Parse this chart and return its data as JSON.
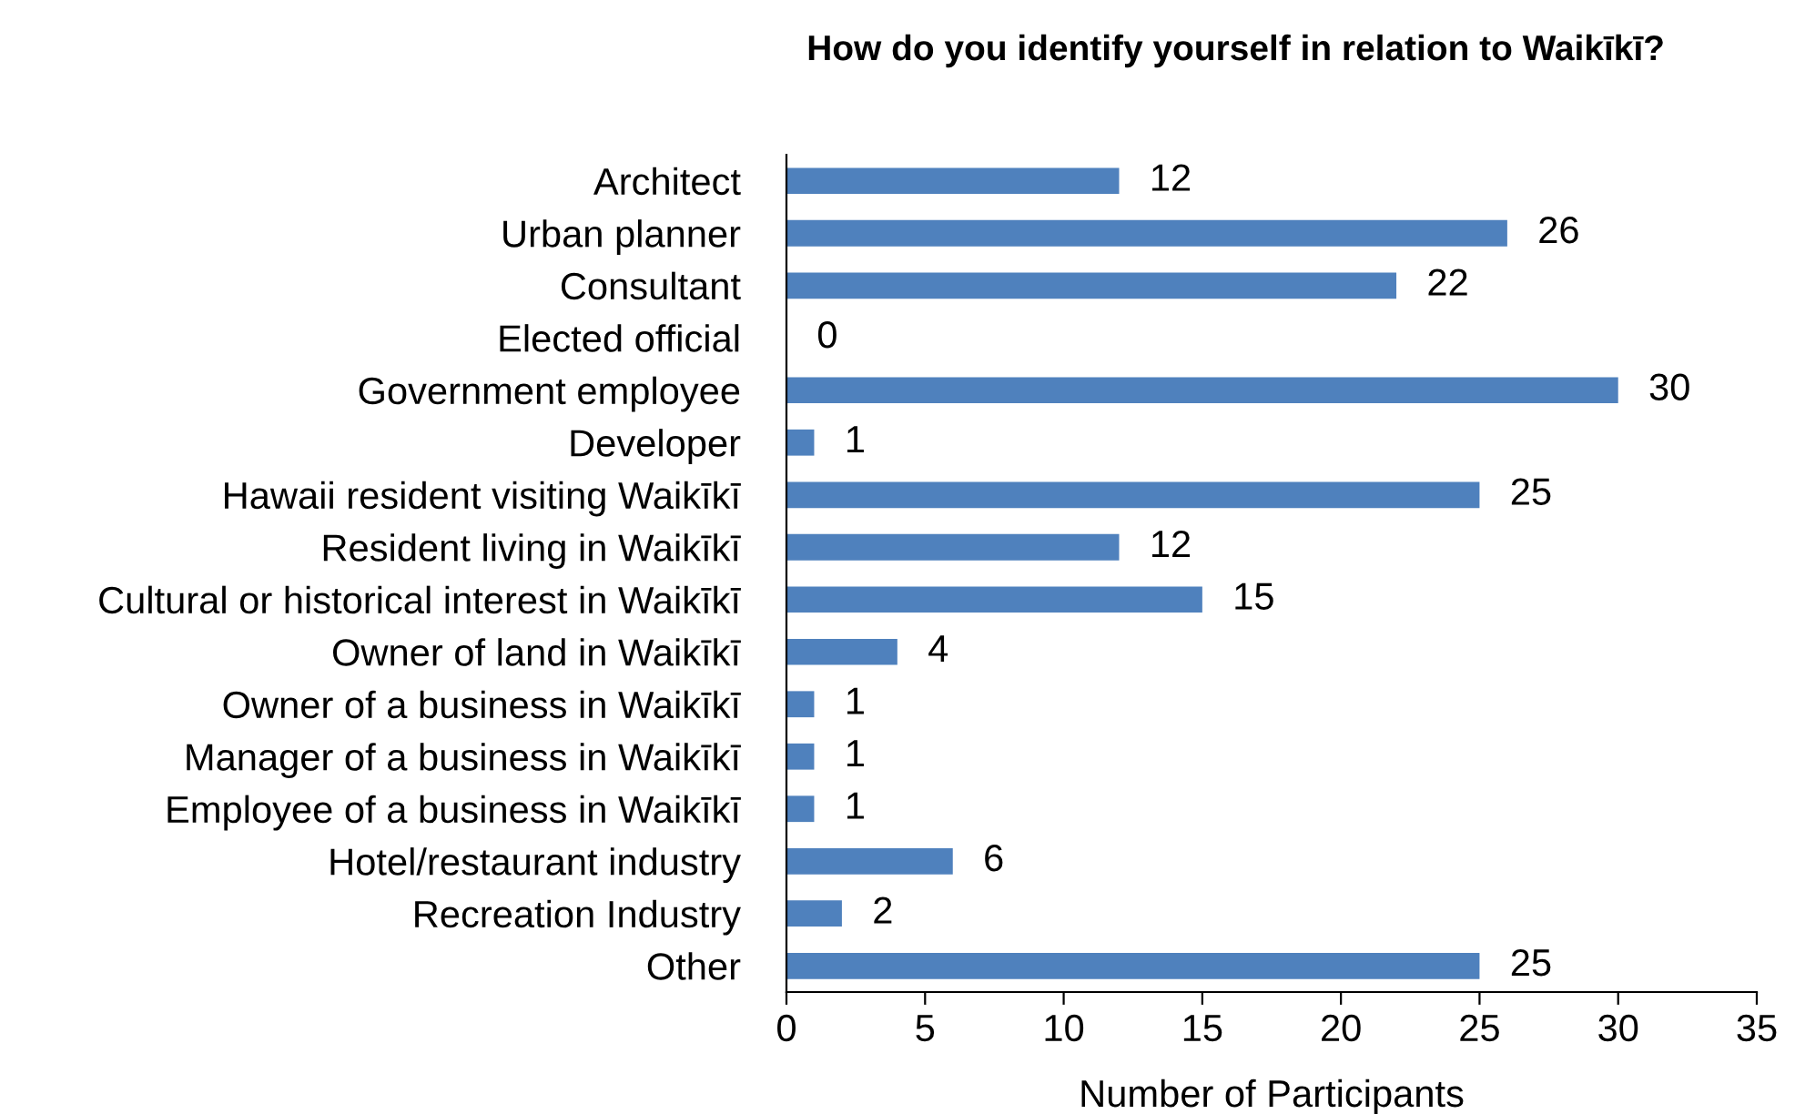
{
  "chart_data": {
    "type": "bar",
    "orientation": "horizontal",
    "title": "How do you identify yourself in relation to Waikīkī?",
    "xlabel": "Number of Participants",
    "categories": [
      "Architect",
      "Urban planner",
      "Consultant",
      "Elected official",
      "Government employee",
      "Developer",
      "Hawaii resident visiting Waikīkī",
      "Resident living in Waikīkī",
      "Cultural or historical interest in Waikīkī",
      "Owner of land in Waikīkī",
      "Owner of a business in Waikīkī",
      "Manager of a business in Waikīkī",
      "Employee of a business in Waikīkī",
      "Hotel/restaurant industry",
      "Recreation Industry",
      "Other"
    ],
    "values": [
      12,
      26,
      22,
      0,
      30,
      1,
      25,
      12,
      15,
      4,
      1,
      1,
      1,
      6,
      2,
      25
    ],
    "color": "#4f81bd",
    "xlim": [
      0,
      35
    ],
    "xticks": [
      0,
      5,
      10,
      15,
      20,
      25,
      30,
      35
    ],
    "grid": false,
    "data_labels": true
  }
}
